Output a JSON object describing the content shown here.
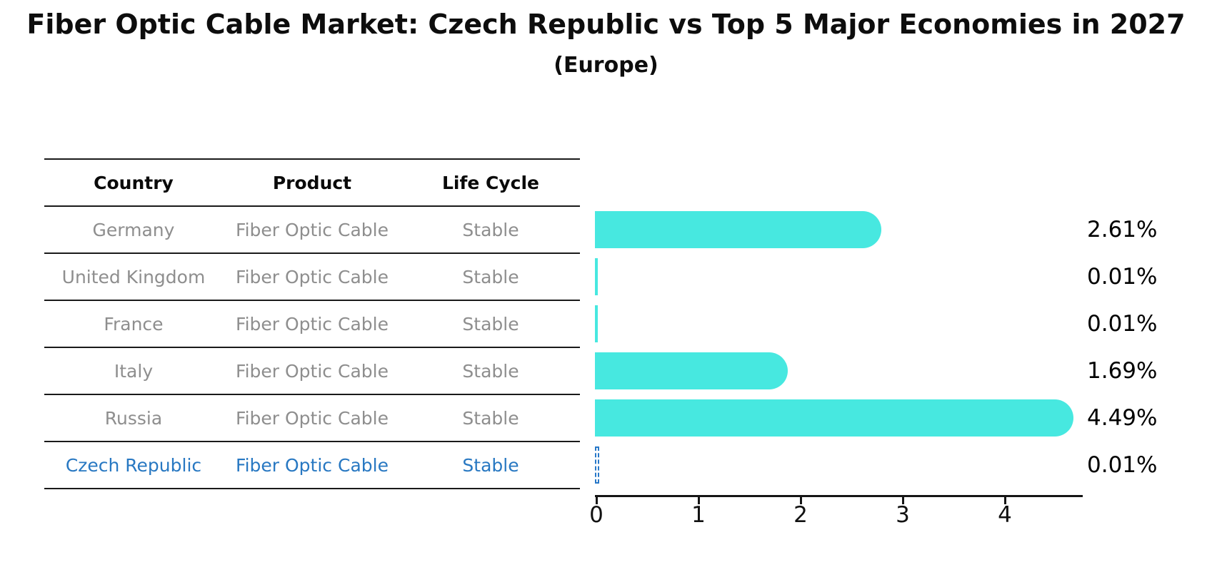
{
  "title": "Fiber Optic Cable Market: Czech Republic vs Top 5 Major Economies in 2027",
  "subtitle": "(Europe)",
  "table": {
    "headers": [
      "Country",
      "Product",
      "Life Cycle"
    ],
    "rows": [
      {
        "country": "Germany",
        "product": "Fiber Optic Cable",
        "life_cycle": "Stable",
        "highlight": false
      },
      {
        "country": "United Kingdom",
        "product": "Fiber Optic Cable",
        "life_cycle": "Stable",
        "highlight": false
      },
      {
        "country": "France",
        "product": "Fiber Optic Cable",
        "life_cycle": "Stable",
        "highlight": false
      },
      {
        "country": "Italy",
        "product": "Fiber Optic Cable",
        "life_cycle": "Stable",
        "highlight": false
      },
      {
        "country": "Russia",
        "product": "Fiber Optic Cable",
        "life_cycle": "Stable",
        "highlight": false
      },
      {
        "country": "Czech Republic",
        "product": "Fiber Optic Cable",
        "life_cycle": "Stable",
        "highlight": true
      }
    ]
  },
  "chart_data": {
    "type": "bar",
    "orientation": "horizontal",
    "categories": [
      "Germany",
      "United Kingdom",
      "France",
      "Italy",
      "Russia",
      "Czech Republic"
    ],
    "values": [
      2.61,
      0.01,
      0.01,
      1.69,
      4.49,
      0.01
    ],
    "value_labels": [
      "2.61%",
      "0.01%",
      "0.01%",
      "1.69%",
      "4.49%",
      "0.01%"
    ],
    "x_tick_labels": [
      "0",
      "1",
      "2",
      "3",
      "4"
    ],
    "x_ticks": [
      0,
      1,
      2,
      3,
      4
    ],
    "xlim": [
      0,
      4.75
    ],
    "grid": false,
    "legend": "none",
    "highlight_index": 5,
    "colors": {
      "bar_fill": "#47E8E0",
      "highlight_edge": "#2878C8",
      "highlight_text": "#2878C2",
      "muted_text": "#8E8E8E",
      "axis": "#151515",
      "label_text": "#000000"
    }
  }
}
